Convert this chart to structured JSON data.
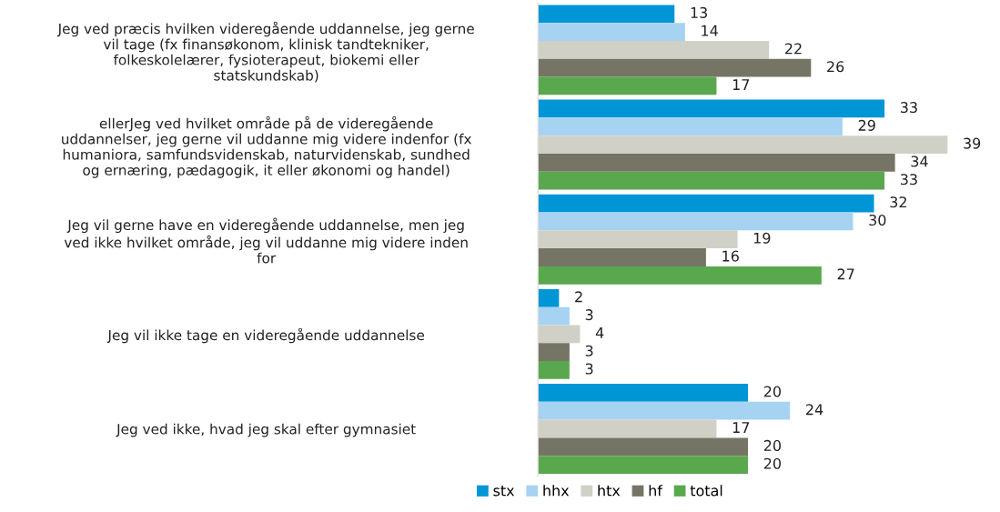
{
  "chart_data": {
    "type": "bar",
    "orientation": "horizontal",
    "categories": [
      "Jeg ved præcis hvilken videregående uddannelse, jeg gerne\nvil tage (fx finansøkonom, klinisk tandtekniker,\nfolkeskolelærer, fysioterapeut, biokemi eller\nstatskundskab)",
      "ellerJeg ved hvilket område på de videregående\nuddannelser, jeg gerne vil uddanne mig videre indenfor (fx\nhumaniora, samfundsvidenskab, naturvidenskab, sundhed\nog ernæring, pædagogik, it eller økonomi og handel)",
      "Jeg vil gerne have en videregående uddannelse, men jeg\nved ikke hvilket område, jeg vil uddanne mig videre inden\nfor",
      "Jeg vil ikke tage en videregående uddannelse",
      "Jeg ved ikke, hvad jeg skal efter gymnasiet"
    ],
    "series": [
      {
        "name": "stx",
        "color": "#0096d6",
        "values": [
          13,
          33,
          32,
          2,
          20
        ]
      },
      {
        "name": "hhx",
        "color": "#a6d3f2",
        "values": [
          14,
          29,
          30,
          3,
          24
        ]
      },
      {
        "name": "htx",
        "color": "#d0d0c6",
        "values": [
          22,
          39,
          19,
          4,
          17
        ]
      },
      {
        "name": "hf",
        "color": "#767565",
        "values": [
          26,
          34,
          16,
          3,
          20
        ]
      },
      {
        "name": "total",
        "color": "#5aa84e",
        "values": [
          17,
          33,
          27,
          3,
          20
        ]
      }
    ],
    "tick_labels": false,
    "data_labels": true,
    "legend": "bottom",
    "grid": false
  }
}
